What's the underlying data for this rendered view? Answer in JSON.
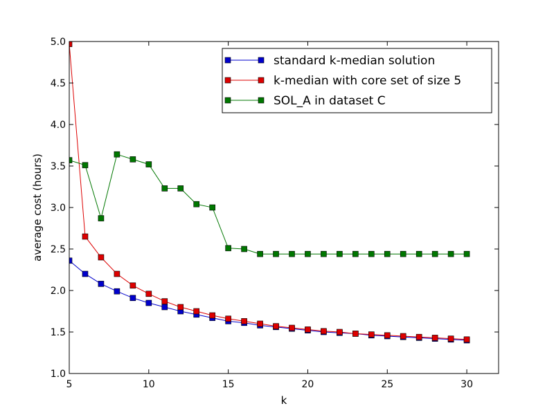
{
  "chart_data": {
    "type": "line",
    "title": "",
    "xlabel": "k",
    "ylabel": "average cost (hours)",
    "xlim": [
      5,
      32
    ],
    "ylim": [
      1.0,
      5.0
    ],
    "xticks": [
      "5",
      "10",
      "15",
      "20",
      "25",
      "30"
    ],
    "yticks": [
      "1.0",
      "1.5",
      "2.0",
      "2.5",
      "3.0",
      "3.5",
      "4.0",
      "4.5",
      "5.0"
    ],
    "grid": false,
    "legend_position": "top-right",
    "x": [
      5,
      6,
      7,
      8,
      9,
      10,
      11,
      12,
      13,
      14,
      15,
      16,
      17,
      18,
      19,
      20,
      21,
      22,
      23,
      24,
      25,
      26,
      27,
      28,
      29,
      30
    ],
    "series": [
      {
        "name": "standard k-median solution",
        "color": "#0000cc",
        "values": [
          2.36,
          2.2,
          2.08,
          1.99,
          1.91,
          1.85,
          1.8,
          1.75,
          1.71,
          1.67,
          1.63,
          1.61,
          1.58,
          1.56,
          1.54,
          1.52,
          1.5,
          1.49,
          1.48,
          1.46,
          1.45,
          1.44,
          1.43,
          1.42,
          1.41,
          1.4
        ]
      },
      {
        "name": "k-median with core set of size 5",
        "color": "#dd0000",
        "values": [
          4.97,
          2.65,
          2.4,
          2.2,
          2.06,
          1.96,
          1.87,
          1.8,
          1.75,
          1.7,
          1.66,
          1.63,
          1.6,
          1.57,
          1.55,
          1.53,
          1.51,
          1.5,
          1.48,
          1.47,
          1.46,
          1.45,
          1.44,
          1.43,
          1.42,
          1.41
        ]
      },
      {
        "name": "SOL_A in dataset C",
        "color": "#007700",
        "values": [
          3.57,
          3.51,
          2.87,
          3.64,
          3.58,
          3.52,
          3.23,
          3.23,
          3.04,
          3.0,
          2.51,
          2.5,
          2.44,
          2.44,
          2.44,
          2.44,
          2.44,
          2.44,
          2.44,
          2.44,
          2.44,
          2.44,
          2.44,
          2.44,
          2.44,
          2.44
        ]
      }
    ]
  }
}
